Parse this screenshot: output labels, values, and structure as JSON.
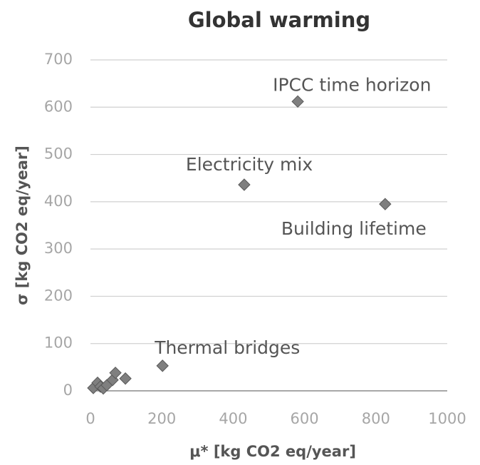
{
  "chart_data": {
    "type": "scatter",
    "title": "Global warming",
    "xlabel": "μ* [kg CO2 eq/year]",
    "ylabel": "σ [kg CO2 eq/year]",
    "x": [
      581,
      431,
      826,
      202,
      8,
      20,
      28,
      36,
      46,
      62,
      70,
      98
    ],
    "values": [
      612,
      436,
      395,
      53,
      6,
      17,
      9,
      5,
      12,
      23,
      38,
      26
    ],
    "labels": [
      "IPCC time horizon",
      "Electricity mix",
      "Building lifetime",
      "Thermal bridges",
      null,
      null,
      null,
      null,
      null,
      null,
      null,
      null
    ],
    "color": "#7f7f7f",
    "xlim": [
      0,
      1000
    ],
    "xticks": [
      0,
      200,
      400,
      600,
      800,
      1000
    ],
    "ylim": [
      0,
      700
    ],
    "yticks": [
      0,
      100,
      200,
      300,
      400,
      500,
      600,
      700
    ],
    "grid": true
  }
}
